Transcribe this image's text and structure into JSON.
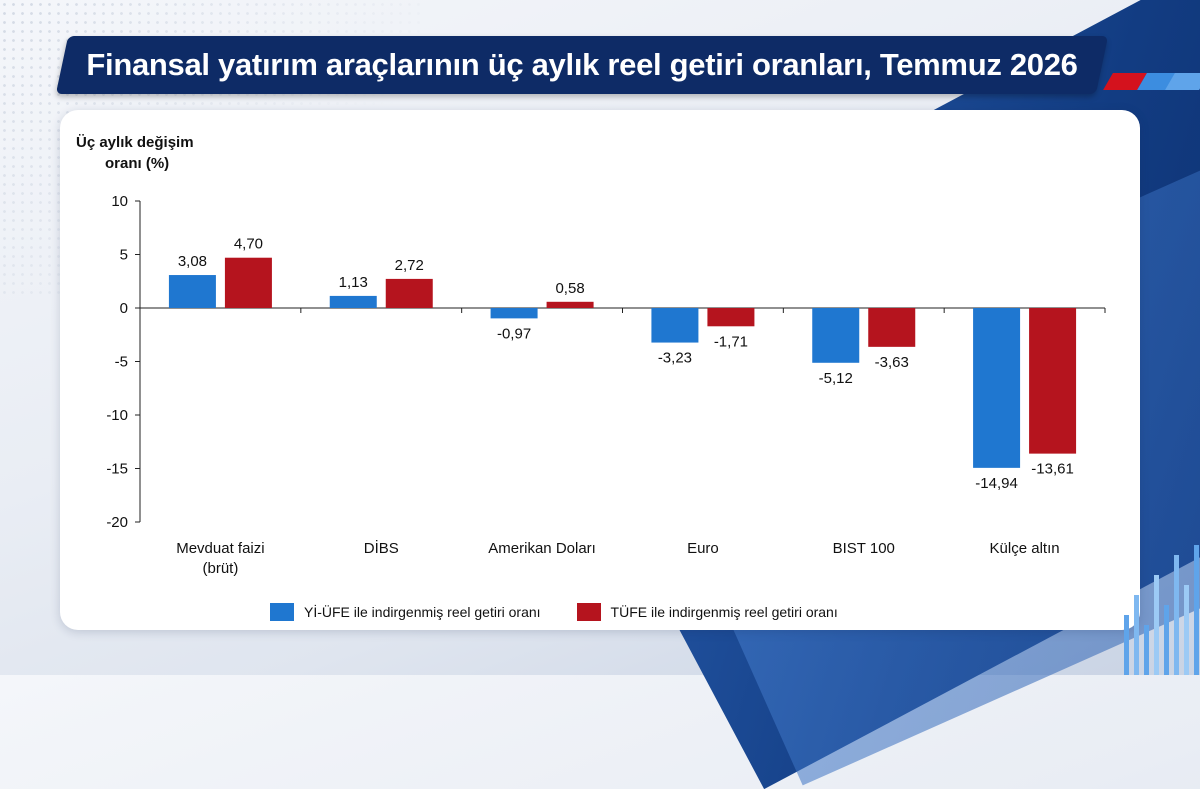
{
  "title": "Finansal yatırım araçlarının üç aylık reel getiri oranları, Temmuz 2026",
  "colors": {
    "title_bg": "#0e2b66",
    "series_blue": "#1f77d0",
    "series_red": "#b5141e",
    "accent_red": "#d4121d",
    "accent_blue": "#3c8de0"
  },
  "chart_data": {
    "type": "bar",
    "ylabel_line1": "Üç aylık değişim",
    "ylabel_line2": "oranı (%)",
    "ylim": [
      -20,
      10
    ],
    "yticks": [
      10,
      5,
      0,
      -5,
      -10,
      -15,
      -20
    ],
    "ytick_labels": [
      "10",
      "5",
      "0",
      "-5",
      "-10",
      "-15",
      "-20"
    ],
    "grid": false,
    "legend_position": "bottom",
    "categories": [
      [
        "Mevduat faizi",
        "(brüt)"
      ],
      [
        "DİBS"
      ],
      [
        "Amerikan Doları"
      ],
      [
        "Euro"
      ],
      [
        "BIST 100"
      ],
      [
        "Külçe altın"
      ]
    ],
    "series": [
      {
        "name": "Yİ-ÜFE ile indirgenmiş reel getiri oranı",
        "color": "#1f77d0",
        "values": [
          3.08,
          1.13,
          -0.97,
          -3.23,
          -5.12,
          -14.94
        ],
        "labels": [
          "3,08",
          "1,13",
          "-0,97",
          "-3,23",
          "-5,12",
          "-14,94"
        ]
      },
      {
        "name": "TÜFE ile indirgenmiş reel getiri oranı",
        "color": "#b5141e",
        "values": [
          4.7,
          2.72,
          0.58,
          -1.71,
          -3.63,
          -13.61
        ],
        "labels": [
          "4,70",
          "2,72",
          "0,58",
          "-1,71",
          "-3,63",
          "-13,61"
        ]
      }
    ]
  }
}
